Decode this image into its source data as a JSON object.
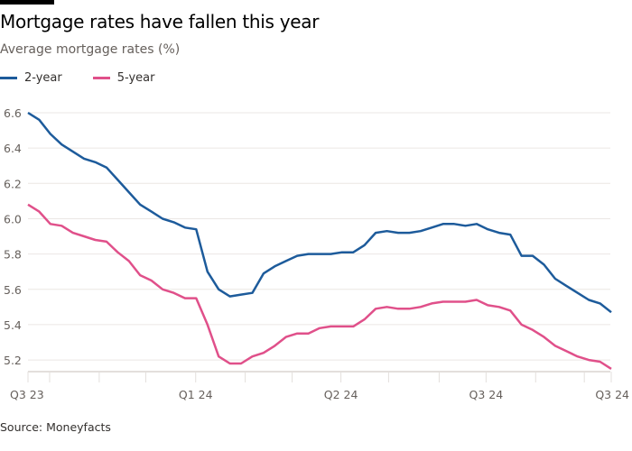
{
  "header": {
    "title": "Mortgage rates have fallen this year",
    "subtitle": "Average mortgage rates (%)"
  },
  "source": "Source: Moneyfacts",
  "colors": {
    "two_year": "#1d5b9b",
    "five_year": "#e0508a",
    "grid": "#ebe7e4"
  },
  "chart_data": {
    "type": "line",
    "title": "Mortgage rates have fallen this year",
    "ylabel": "Average mortgage rates (%)",
    "xlabel": "",
    "x_unit": "weeks since start (approx. mid-Sep 2023)",
    "ylim": [
      5.134,
      6.6
    ],
    "xlim": [
      0,
      52
    ],
    "yticks": [
      5.2,
      5.4,
      5.6,
      5.8,
      6.0,
      6.2,
      6.4,
      6.6
    ],
    "ytick_labels": [
      "5.2",
      "5.4",
      "5.6",
      "5.8",
      "6.0",
      "6.2",
      "6.4",
      "6.6"
    ],
    "xtick_positions": [
      0,
      1.93,
      6.35,
      10.5,
      14.95,
      19.37,
      23.55,
      27.9,
      32.15,
      36.66,
      40.84,
      45.26,
      49.6,
      52
    ],
    "xlabels": [
      {
        "label": "Q3 23",
        "x": 0
      },
      {
        "label": "Q1 24",
        "x": 14.95
      },
      {
        "label": "Q2 24",
        "x": 27.9
      },
      {
        "label": "Q3 24",
        "x": 40.84
      },
      {
        "label": "Q3 24",
        "x": 52
      }
    ],
    "grid": true,
    "legend_placement": "top-left",
    "x": [
      0,
      1,
      2,
      3,
      4,
      5,
      6,
      7,
      8,
      9,
      10,
      11,
      12,
      13,
      14,
      15,
      16,
      17,
      18,
      19,
      20,
      21,
      22,
      23,
      24,
      25,
      26,
      27,
      28,
      29,
      30,
      31,
      32,
      33,
      34,
      35,
      36,
      37,
      38,
      39,
      40,
      41,
      42,
      43,
      44,
      45,
      46,
      47,
      48,
      49,
      50,
      51,
      52
    ],
    "series": [
      {
        "name": "2-year",
        "color": "#1d5b9b",
        "values": [
          6.6,
          6.56,
          6.48,
          6.42,
          6.38,
          6.34,
          6.32,
          6.29,
          6.22,
          6.15,
          6.08,
          6.04,
          6.0,
          5.98,
          5.95,
          5.94,
          5.7,
          5.6,
          5.56,
          5.57,
          5.58,
          5.69,
          5.73,
          5.76,
          5.79,
          5.8,
          5.8,
          5.8,
          5.81,
          5.81,
          5.85,
          5.92,
          5.93,
          5.92,
          5.92,
          5.93,
          5.95,
          5.97,
          5.97,
          5.96,
          5.97,
          5.94,
          5.92,
          5.91,
          5.79,
          5.79,
          5.74,
          5.66,
          5.62,
          5.58,
          5.54,
          5.52,
          5.47
        ]
      },
      {
        "name": "5-year",
        "color": "#e0508a",
        "values": [
          6.08,
          6.04,
          5.97,
          5.96,
          5.92,
          5.9,
          5.88,
          5.87,
          5.81,
          5.76,
          5.68,
          5.65,
          5.6,
          5.58,
          5.55,
          5.55,
          5.4,
          5.22,
          5.18,
          5.18,
          5.22,
          5.24,
          5.28,
          5.33,
          5.35,
          5.35,
          5.38,
          5.39,
          5.39,
          5.39,
          5.43,
          5.49,
          5.5,
          5.49,
          5.49,
          5.5,
          5.52,
          5.53,
          5.53,
          5.53,
          5.54,
          5.51,
          5.5,
          5.48,
          5.4,
          5.37,
          5.33,
          5.28,
          5.25,
          5.22,
          5.2,
          5.19,
          5.15
        ]
      }
    ]
  }
}
